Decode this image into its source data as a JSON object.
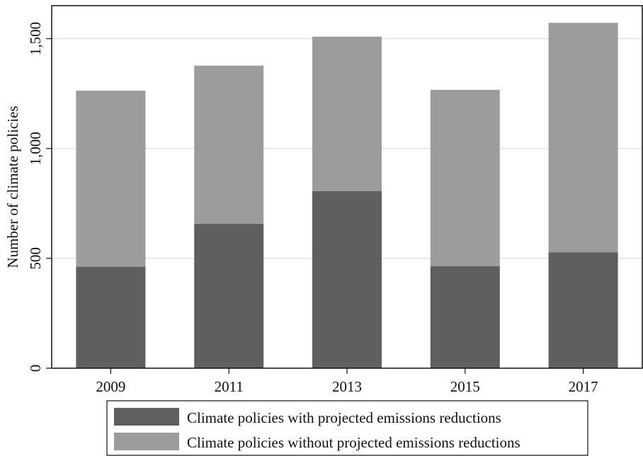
{
  "chart_data": {
    "type": "bar",
    "stacked": true,
    "categories": [
      "2009",
      "2011",
      "2013",
      "2015",
      "2017"
    ],
    "series": [
      {
        "name": "Climate policies with projected emissions reductions",
        "values": [
          462,
          658,
          806,
          464,
          528
        ],
        "color": "#5f5f5f"
      },
      {
        "name": "Climate policies without projected emissions reductions",
        "values": [
          801,
          719,
          703,
          803,
          1044
        ],
        "color": "#9c9c9c"
      }
    ],
    "xlabel": "",
    "ylabel": "Number of climate policies",
    "ylim": [
      0,
      1650
    ],
    "yticks": [
      0,
      500,
      1000,
      1500
    ],
    "ytick_labels": [
      "0",
      "500",
      "1,000",
      "1,500"
    ],
    "grid": true,
    "legend_position": "bottom"
  }
}
